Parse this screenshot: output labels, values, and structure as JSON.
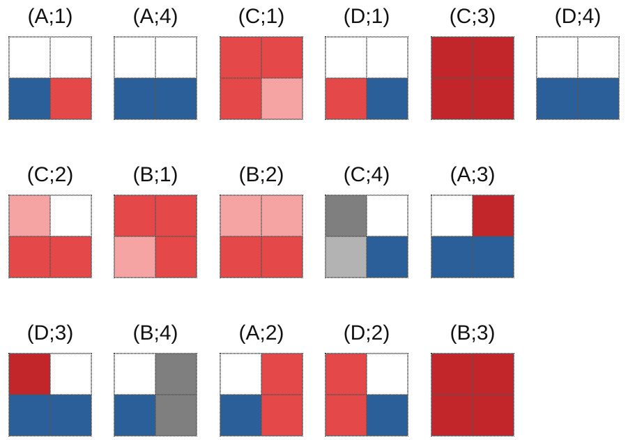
{
  "colors": {
    "W": "#ffffff",
    "B": "#2b5f9a",
    "R": "#e44848",
    "P": "#f5a3a3",
    "D": "#c2262a",
    "G": "#7f7f7f",
    "L": "#b3b3b3"
  },
  "rows": [
    [
      {
        "label": "(A;1)",
        "cells": [
          "W",
          "W",
          "B",
          "R"
        ]
      },
      {
        "label": "(A;4)",
        "cells": [
          "W",
          "W",
          "B",
          "B"
        ]
      },
      {
        "label": "(C;1)",
        "cells": [
          "R",
          "R",
          "R",
          "P"
        ]
      },
      {
        "label": "(D;1)",
        "cells": [
          "W",
          "W",
          "R",
          "B"
        ]
      },
      {
        "label": "(C;3)",
        "cells": [
          "D",
          "D",
          "D",
          "D"
        ]
      },
      {
        "label": "(D;4)",
        "cells": [
          "W",
          "W",
          "B",
          "B"
        ]
      }
    ],
    [
      {
        "label": "(C;2)",
        "cells": [
          "P",
          "W",
          "R",
          "R"
        ]
      },
      {
        "label": "(B;1)",
        "cells": [
          "R",
          "R",
          "P",
          "R"
        ]
      },
      {
        "label": "(B;2)",
        "cells": [
          "P",
          "P",
          "R",
          "R"
        ]
      },
      {
        "label": "(C;4)",
        "cells": [
          "G",
          "W",
          "L",
          "B"
        ]
      },
      {
        "label": "(A;3)",
        "cells": [
          "W",
          "D",
          "B",
          "B"
        ]
      }
    ],
    [
      {
        "label": "(D;3)",
        "cells": [
          "D",
          "W",
          "B",
          "B"
        ]
      },
      {
        "label": "(B;4)",
        "cells": [
          "W",
          "G",
          "B",
          "G"
        ]
      },
      {
        "label": "(A;2)",
        "cells": [
          "W",
          "R",
          "B",
          "R"
        ]
      },
      {
        "label": "(D;2)",
        "cells": [
          "R",
          "W",
          "R",
          "B"
        ]
      },
      {
        "label": "(B;3)",
        "cells": [
          "D",
          "D",
          "D",
          "D"
        ]
      }
    ]
  ]
}
